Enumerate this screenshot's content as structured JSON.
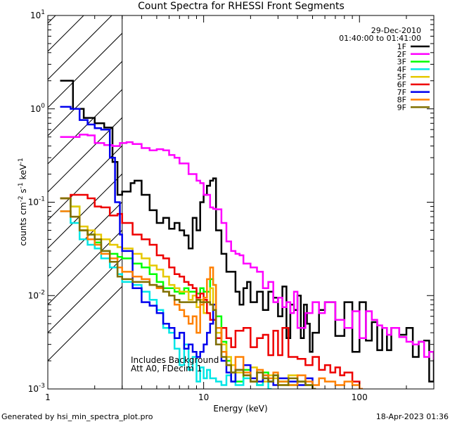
{
  "chart_data": {
    "type": "line",
    "title": "Count Spectra for RHESSI Front Segments",
    "xlabel": "Energy (keV)",
    "ylabel": "counts cm⁻² s⁻¹ keV⁻¹",
    "xscale": "log",
    "yscale": "log",
    "xlim": [
      1,
      300
    ],
    "ylim": [
      0.001,
      10
    ],
    "x_ticks": [
      1,
      10,
      100
    ],
    "x_tick_labels": [
      "1",
      "10",
      "100"
    ],
    "y_ticks": [
      0.001,
      0.01,
      0.1,
      1,
      10
    ],
    "y_tick_labels": [
      {
        "base": "10",
        "exp": "-3"
      },
      {
        "base": "10",
        "exp": "-2"
      },
      {
        "base": "10",
        "exp": "-1"
      },
      {
        "base": "10",
        "exp": "0"
      },
      {
        "base": "10",
        "exp": "1"
      }
    ],
    "attenuator_region": {
      "x_from": 1,
      "x_to": 3,
      "pattern": "hatched"
    },
    "legend_header": {
      "date": "29-Dec-2010",
      "time_range": "01:40:00 to 01:41:00"
    },
    "notes": [
      "Includes Background",
      "Att A0, FDecim 1"
    ],
    "series": [
      {
        "name": "1F",
        "color": "#000000",
        "x": [
          1.2,
          1.4,
          1.45,
          1.6,
          1.7,
          2.0,
          2.3,
          2.6,
          2.8,
          3.0,
          3.4,
          3.6,
          4.0,
          4.5,
          5.0,
          5.5,
          6.0,
          6.5,
          7.0,
          7.5,
          8.0,
          8.5,
          9.0,
          9.5,
          10.0,
          10.5,
          11.0,
          11.5,
          12.0,
          13.0,
          14.0,
          15.0,
          16.0,
          17.0,
          18.0,
          19.0,
          20.0,
          22.0,
          24.0,
          26.0,
          28.0,
          30.0,
          32.0,
          34.0,
          36.0,
          38.0,
          40.0,
          42.0,
          44.0,
          46.0,
          48.0,
          50.0,
          55.0,
          60.0,
          65.0,
          70.0,
          80.0,
          90.0,
          100.0,
          110.0,
          120.0,
          130.0,
          140.0,
          150.0,
          160.0,
          180.0,
          200.0,
          220.0,
          240.0,
          260.0,
          280.0,
          300.0
        ],
        "y": [
          2.0,
          2.0,
          1.0,
          1.0,
          0.8,
          0.7,
          0.63,
          0.27,
          0.12,
          0.13,
          0.16,
          0.17,
          0.12,
          0.082,
          0.06,
          0.068,
          0.052,
          0.06,
          0.05,
          0.044,
          0.032,
          0.068,
          0.05,
          0.1,
          0.12,
          0.15,
          0.17,
          0.18,
          0.05,
          0.028,
          0.018,
          0.018,
          0.011,
          0.008,
          0.012,
          0.014,
          0.0085,
          0.011,
          0.007,
          0.011,
          0.0095,
          0.006,
          0.0125,
          0.0035,
          0.008,
          0.007,
          0.01,
          0.0035,
          0.008,
          0.005,
          0.0025,
          0.004,
          0.007,
          0.0085,
          0.0085,
          0.0037,
          0.0085,
          0.0025,
          0.0085,
          0.0033,
          0.0052,
          0.0026,
          0.0045,
          0.0026,
          0.0045,
          0.0038,
          0.0045,
          0.0022,
          0.0032,
          0.0033,
          0.0012,
          0.0024
        ]
      },
      {
        "name": "2F",
        "color": "#ff00ff",
        "x": [
          1.2,
          1.4,
          1.6,
          1.8,
          2.0,
          2.3,
          2.6,
          2.9,
          3.2,
          3.5,
          4.0,
          4.5,
          5.0,
          5.5,
          6.0,
          6.5,
          7.0,
          7.5,
          8.0,
          8.5,
          9.0,
          9.5,
          10.0,
          10.5,
          11.0,
          11.5,
          12.0,
          13.0,
          14.0,
          15.0,
          16.0,
          17.0,
          18.0,
          19.0,
          20.0,
          22.0,
          24.0,
          26.0,
          28.0,
          30.0,
          32.0,
          34.0,
          36.0,
          38.0,
          40.0,
          45.0,
          50.0,
          55.0,
          60.0,
          70.0,
          80.0,
          90.0,
          100.0,
          110.0,
          120.0,
          130.0,
          140.0,
          150.0,
          160.0,
          180.0,
          200.0,
          220.0,
          240.0,
          260.0,
          280.0,
          300.0
        ],
        "y": [
          0.5,
          0.5,
          0.53,
          0.52,
          0.43,
          0.41,
          0.4,
          0.43,
          0.44,
          0.42,
          0.38,
          0.36,
          0.37,
          0.36,
          0.32,
          0.3,
          0.26,
          0.26,
          0.2,
          0.2,
          0.17,
          0.16,
          0.12,
          0.12,
          0.088,
          0.085,
          0.084,
          0.06,
          0.038,
          0.03,
          0.028,
          0.027,
          0.022,
          0.022,
          0.02,
          0.018,
          0.012,
          0.014,
          0.0085,
          0.0095,
          0.0075,
          0.0085,
          0.0065,
          0.011,
          0.0045,
          0.0065,
          0.0085,
          0.0065,
          0.0085,
          0.0055,
          0.0045,
          0.0068,
          0.0035,
          0.0068,
          0.0055,
          0.0048,
          0.0045,
          0.0038,
          0.0045,
          0.0036,
          0.0032,
          0.003,
          0.0032,
          0.0022,
          0.0025,
          0.0021
        ]
      },
      {
        "name": "3F",
        "color": "#00ff00",
        "x": [
          1.2,
          1.4,
          1.6,
          1.8,
          2.0,
          2.2,
          2.5,
          2.8,
          3.0,
          3.5,
          4.0,
          4.5,
          5.0,
          5.5,
          6.0,
          6.5,
          7.0,
          7.5,
          8.0,
          8.5,
          9.0,
          9.5,
          10.0,
          10.5,
          11.0,
          11.5,
          12.0,
          13.0,
          14.0,
          15.0,
          16.0,
          18.0,
          20.0,
          22.0,
          24.0,
          26.0,
          28.0,
          30.0,
          35.0,
          40.0,
          45.0,
          50.0
        ],
        "y": [
          0.11,
          0.09,
          0.05,
          0.045,
          0.037,
          0.03,
          0.028,
          0.026,
          0.025,
          0.022,
          0.02,
          0.017,
          0.014,
          0.012,
          0.012,
          0.011,
          0.0105,
          0.012,
          0.011,
          0.011,
          0.0105,
          0.012,
          0.011,
          0.011,
          0.015,
          0.013,
          0.006,
          0.0032,
          0.002,
          0.0015,
          0.0012,
          0.0016,
          0.0012,
          0.0011,
          0.0015,
          0.0012,
          0.0014,
          0.0012,
          0.0011,
          0.0012,
          0.0011,
          0.001
        ]
      },
      {
        "name": "4F",
        "color": "#00e6e6",
        "x": [
          1.2,
          1.4,
          1.6,
          1.8,
          2.0,
          2.2,
          2.5,
          2.8,
          3.0,
          3.5,
          4.0,
          4.5,
          5.0,
          5.5,
          6.0,
          6.5,
          7.0,
          7.5,
          8.0,
          8.5,
          9.0,
          9.5,
          10.0,
          10.5,
          11.0,
          12.0,
          13.0,
          14.0,
          15.0,
          16.0,
          18.0,
          20.0,
          22.0,
          24.0,
          26.0
        ],
        "y": [
          0.08,
          0.06,
          0.04,
          0.035,
          0.032,
          0.025,
          0.02,
          0.017,
          0.014,
          0.013,
          0.011,
          0.009,
          0.007,
          0.0045,
          0.004,
          0.0027,
          0.0018,
          0.003,
          0.0016,
          0.0022,
          0.0012,
          0.0017,
          0.0013,
          0.0016,
          0.0013,
          0.0012,
          0.0011,
          0.0014,
          0.0012,
          0.0011,
          0.0013,
          0.0012,
          0.0011,
          0.0013,
          0.001
        ]
      },
      {
        "name": "5F",
        "color": "#e6c800",
        "x": [
          1.2,
          1.4,
          1.6,
          1.8,
          2.0,
          2.2,
          2.5,
          2.8,
          3.0,
          3.5,
          4.0,
          4.5,
          5.0,
          5.5,
          6.0,
          6.5,
          7.0,
          7.5,
          8.0,
          8.5,
          9.0,
          9.5,
          10.0,
          10.5,
          11.0,
          11.5,
          12.0,
          13.0,
          14.0,
          15.0,
          16.0,
          18.0,
          20.0,
          22.0,
          24.0,
          26.0,
          28.0,
          30.0,
          35.0,
          40.0,
          45.0,
          50.0
        ],
        "y": [
          0.11,
          0.09,
          0.055,
          0.05,
          0.045,
          0.04,
          0.035,
          0.033,
          0.032,
          0.028,
          0.025,
          0.021,
          0.019,
          0.016,
          0.013,
          0.012,
          0.011,
          0.011,
          0.009,
          0.01,
          0.0075,
          0.009,
          0.0065,
          0.0085,
          0.012,
          0.007,
          0.004,
          0.003,
          0.0022,
          0.0018,
          0.0015,
          0.0014,
          0.0017,
          0.0015,
          0.0012,
          0.0014,
          0.0013,
          0.0011,
          0.0014,
          0.0012,
          0.0011,
          0.001
        ]
      },
      {
        "name": "6F",
        "color": "#ee0000",
        "x": [
          1.2,
          1.4,
          1.6,
          1.8,
          2.0,
          2.2,
          2.5,
          2.8,
          3.0,
          3.5,
          4.0,
          4.5,
          5.0,
          5.5,
          6.0,
          6.5,
          7.0,
          7.5,
          8.0,
          8.5,
          9.0,
          9.5,
          10.0,
          10.5,
          11.0,
          12.0,
          13.0,
          14.0,
          15.0,
          16.0,
          18.0,
          20.0,
          22.0,
          24.0,
          26.0,
          28.0,
          30.0,
          32.0,
          35.0,
          40.0,
          45.0,
          50.0,
          55.0,
          60.0,
          65.0,
          70.0,
          75.0,
          80.0,
          90.0,
          100.0
        ],
        "y": [
          0.11,
          0.12,
          0.12,
          0.11,
          0.09,
          0.088,
          0.072,
          0.075,
          0.06,
          0.045,
          0.04,
          0.035,
          0.027,
          0.025,
          0.02,
          0.017,
          0.016,
          0.014,
          0.013,
          0.012,
          0.0095,
          0.0105,
          0.009,
          0.0065,
          0.0055,
          0.0035,
          0.0045,
          0.0035,
          0.0028,
          0.0042,
          0.0045,
          0.0028,
          0.0035,
          0.0038,
          0.0023,
          0.0042,
          0.0023,
          0.0045,
          0.0022,
          0.0021,
          0.0018,
          0.0022,
          0.0016,
          0.0018,
          0.0015,
          0.0017,
          0.0014,
          0.0015,
          0.0012,
          0.001
        ]
      },
      {
        "name": "7F",
        "color": "#0000ee",
        "x": [
          1.2,
          1.4,
          1.6,
          1.8,
          2.0,
          2.2,
          2.5,
          2.7,
          2.9,
          3.0,
          3.5,
          4.0,
          4.5,
          5.0,
          5.5,
          6.0,
          6.5,
          7.0,
          7.5,
          8.0,
          8.5,
          9.0,
          9.5,
          10.0,
          10.5,
          11.0,
          11.5,
          12.0,
          13.0,
          14.0,
          15.0,
          16.0,
          18.0,
          20.0,
          22.0,
          24.0,
          26.0,
          28.0,
          30.0,
          35.0,
          40.0,
          45.0,
          50.0
        ],
        "y": [
          1.05,
          1.0,
          0.76,
          0.68,
          0.62,
          0.6,
          0.3,
          0.1,
          0.045,
          0.03,
          0.012,
          0.0085,
          0.0078,
          0.0065,
          0.005,
          0.0045,
          0.0035,
          0.004,
          0.0027,
          0.003,
          0.0025,
          0.0022,
          0.0025,
          0.003,
          0.004,
          0.005,
          0.008,
          0.003,
          0.002,
          0.0015,
          0.0012,
          0.0016,
          0.0018,
          0.0013,
          0.0012,
          0.0014,
          0.0012,
          0.0011,
          0.0013,
          0.0012,
          0.0011,
          0.0013,
          0.001
        ]
      },
      {
        "name": "8F",
        "color": "#ff8000",
        "x": [
          1.2,
          1.4,
          1.6,
          1.8,
          2.0,
          2.2,
          2.5,
          2.8,
          3.0,
          3.5,
          4.0,
          4.5,
          5.0,
          5.5,
          6.0,
          6.5,
          7.0,
          7.5,
          8.0,
          8.5,
          9.0,
          9.5,
          10.0,
          10.5,
          11.0,
          11.5,
          12.0,
          13.0,
          14.0,
          15.0,
          16.0,
          18.0,
          20.0,
          22.0,
          24.0,
          26.0,
          28.0,
          30.0,
          35.0,
          40.0,
          45.0,
          50.0,
          55.0,
          60.0,
          70.0,
          80.0,
          90.0,
          100.0
        ],
        "y": [
          0.08,
          0.07,
          0.05,
          0.04,
          0.035,
          0.028,
          0.025,
          0.02,
          0.018,
          0.016,
          0.015,
          0.013,
          0.012,
          0.011,
          0.01,
          0.008,
          0.007,
          0.006,
          0.005,
          0.006,
          0.004,
          0.008,
          0.0095,
          0.015,
          0.02,
          0.013,
          0.0045,
          0.0025,
          0.0018,
          0.0015,
          0.0022,
          0.0015,
          0.0012,
          0.0016,
          0.0014,
          0.0013,
          0.0015,
          0.0012,
          0.0011,
          0.0014,
          0.0012,
          0.0011,
          0.0013,
          0.0012,
          0.0011,
          0.0012,
          0.0011,
          0.001
        ]
      },
      {
        "name": "9F",
        "color": "#807000",
        "x": [
          1.2,
          1.4,
          1.6,
          1.8,
          2.0,
          2.2,
          2.5,
          2.8,
          3.0,
          3.5,
          4.0,
          4.5,
          5.0,
          5.5,
          6.0,
          6.5,
          7.0,
          7.5,
          8.0,
          8.5,
          9.0,
          9.5,
          10.0,
          10.5,
          11.0,
          11.5,
          12.0,
          13.0,
          14.0,
          15.0,
          16.0,
          18.0,
          20.0,
          22.0,
          24.0,
          26.0,
          28.0,
          30.0,
          35.0,
          40.0,
          45.0,
          50.0
        ],
        "y": [
          0.11,
          0.07,
          0.05,
          0.045,
          0.04,
          0.03,
          0.023,
          0.016,
          0.015,
          0.014,
          0.014,
          0.013,
          0.0125,
          0.011,
          0.01,
          0.009,
          0.0085,
          0.0085,
          0.0085,
          0.0085,
          0.009,
          0.0085,
          0.0085,
          0.0085,
          0.008,
          0.007,
          0.003,
          0.0022,
          0.0018,
          0.0015,
          0.0016,
          0.0014,
          0.0012,
          0.0015,
          0.0013,
          0.0012,
          0.0014,
          0.0011,
          0.0013,
          0.0012,
          0.0011,
          0.001
        ]
      }
    ]
  },
  "footer": {
    "generated_by": "Generated by hsi_min_spectra_plot.pro",
    "timestamp": "18-Apr-2023 01:36"
  }
}
